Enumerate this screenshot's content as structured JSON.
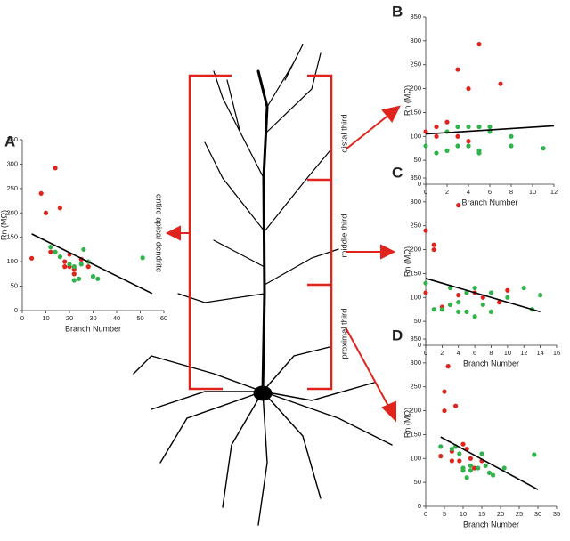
{
  "chart_data": [
    {
      "type": "scatter",
      "label": "A",
      "xlabel": "Branch Number",
      "ylabel": "Rn (MΩ)",
      "xlim": [
        0,
        60
      ],
      "xticks": [
        0,
        10,
        20,
        30,
        40,
        50,
        60
      ],
      "ylim": [
        0,
        350
      ],
      "yticks": [
        0,
        50,
        100,
        150,
        200,
        250,
        300,
        350
      ],
      "series": [
        {
          "color": "#e0231c",
          "x": [
            4,
            8,
            10,
            14,
            16,
            12,
            18,
            20,
            20,
            22,
            22,
            25,
            28,
            18
          ],
          "y": [
            107,
            240,
            200,
            292,
            210,
            120,
            100,
            115,
            90,
            85,
            75,
            105,
            90,
            90
          ]
        },
        {
          "color": "#2fb34a",
          "x": [
            12,
            14,
            16,
            20,
            22,
            24,
            25,
            26,
            28,
            30,
            32,
            51,
            22
          ],
          "y": [
            130,
            120,
            110,
            95,
            90,
            65,
            95,
            125,
            100,
            70,
            65,
            108,
            62
          ]
        }
      ],
      "fit": {
        "color": "#000000",
        "x": [
          4,
          55
        ],
        "y": [
          157,
          35
        ]
      }
    },
    {
      "type": "scatter",
      "label": "B",
      "xlabel": "Branch Number",
      "ylabel": "Rn (MΩ)",
      "xlim": [
        0,
        12
      ],
      "xticks": [
        0,
        2,
        4,
        6,
        8,
        10,
        12
      ],
      "ylim": [
        0,
        350
      ],
      "yticks": [
        0,
        50,
        100,
        150,
        200,
        250,
        300,
        350
      ],
      "series": [
        {
          "color": "#e0231c",
          "x": [
            0,
            1,
            2,
            3,
            4,
            4,
            5,
            7,
            3,
            4,
            1
          ],
          "y": [
            110,
            100,
            130,
            240,
            200,
            90,
            293,
            210,
            100,
            80,
            120
          ]
        },
        {
          "color": "#2fb34a",
          "x": [
            0,
            1,
            2,
            3,
            3,
            4,
            4,
            5,
            5,
            5,
            6,
            6,
            8,
            8,
            11,
            2
          ],
          "y": [
            80,
            65,
            70,
            80,
            120,
            120,
            80,
            70,
            65,
            120,
            110,
            120,
            80,
            100,
            75,
            110
          ]
        }
      ],
      "fit": {
        "color": "#000000",
        "x": [
          0,
          12
        ],
        "y": [
          105,
          122
        ]
      }
    },
    {
      "type": "scatter",
      "label": "C",
      "xlabel": "Branch Number",
      "ylabel": "Rn (MΩ)",
      "xlim": [
        0,
        16
      ],
      "xticks": [
        0,
        2,
        4,
        6,
        8,
        10,
        12,
        14,
        16
      ],
      "ylim": [
        0,
        350
      ],
      "yticks": [
        0,
        50,
        100,
        150,
        200,
        250,
        300,
        350
      ],
      "series": [
        {
          "color": "#e0231c",
          "x": [
            0,
            0,
            1,
            1,
            2,
            4,
            4,
            6,
            7,
            9,
            10,
            3
          ],
          "y": [
            240,
            110,
            210,
            200,
            80,
            293,
            105,
            110,
            100,
            90,
            115,
            85
          ]
        },
        {
          "color": "#2fb34a",
          "x": [
            0,
            1,
            2,
            3,
            3,
            4,
            5,
            5,
            6,
            6,
            7,
            8,
            8,
            10,
            12,
            13,
            14,
            4
          ],
          "y": [
            130,
            75,
            75,
            120,
            85,
            90,
            110,
            70,
            60,
            120,
            85,
            70,
            110,
            100,
            120,
            75,
            105,
            70
          ]
        }
      ],
      "fit": {
        "color": "#000000",
        "x": [
          0,
          14
        ],
        "y": [
          140,
          70
        ]
      }
    },
    {
      "type": "scatter",
      "label": "D",
      "xlabel": "Branch Number",
      "ylabel": "Rn (MΩ)",
      "xlim": [
        0,
        35
      ],
      "xticks": [
        0,
        5,
        10,
        15,
        20,
        25,
        30,
        35
      ],
      "ylim": [
        0,
        350
      ],
      "yticks": [
        0,
        50,
        100,
        150,
        200,
        250,
        300,
        350
      ],
      "series": [
        {
          "color": "#e0231c",
          "x": [
            4,
            5,
            5,
            6,
            8,
            7,
            9,
            10,
            11,
            12,
            13,
            15,
            7
          ],
          "y": [
            105,
            240,
            200,
            293,
            210,
            95,
            95,
            130,
            120,
            100,
            80,
            95,
            115
          ]
        },
        {
          "color": "#2fb34a",
          "x": [
            4,
            7,
            8,
            9,
            10,
            11,
            12,
            12,
            14,
            15,
            16,
            17,
            18,
            21,
            29,
            10
          ],
          "y": [
            125,
            120,
            125,
            110,
            80,
            60,
            85,
            75,
            80,
            110,
            85,
            70,
            65,
            80,
            108,
            75
          ]
        }
      ],
      "fit": {
        "color": "#000000",
        "x": [
          4,
          30
        ],
        "y": [
          145,
          35
        ]
      }
    }
  ],
  "annotations": [
    "distal third",
    "middle third",
    "proximal third",
    "entire apical dendrite"
  ]
}
